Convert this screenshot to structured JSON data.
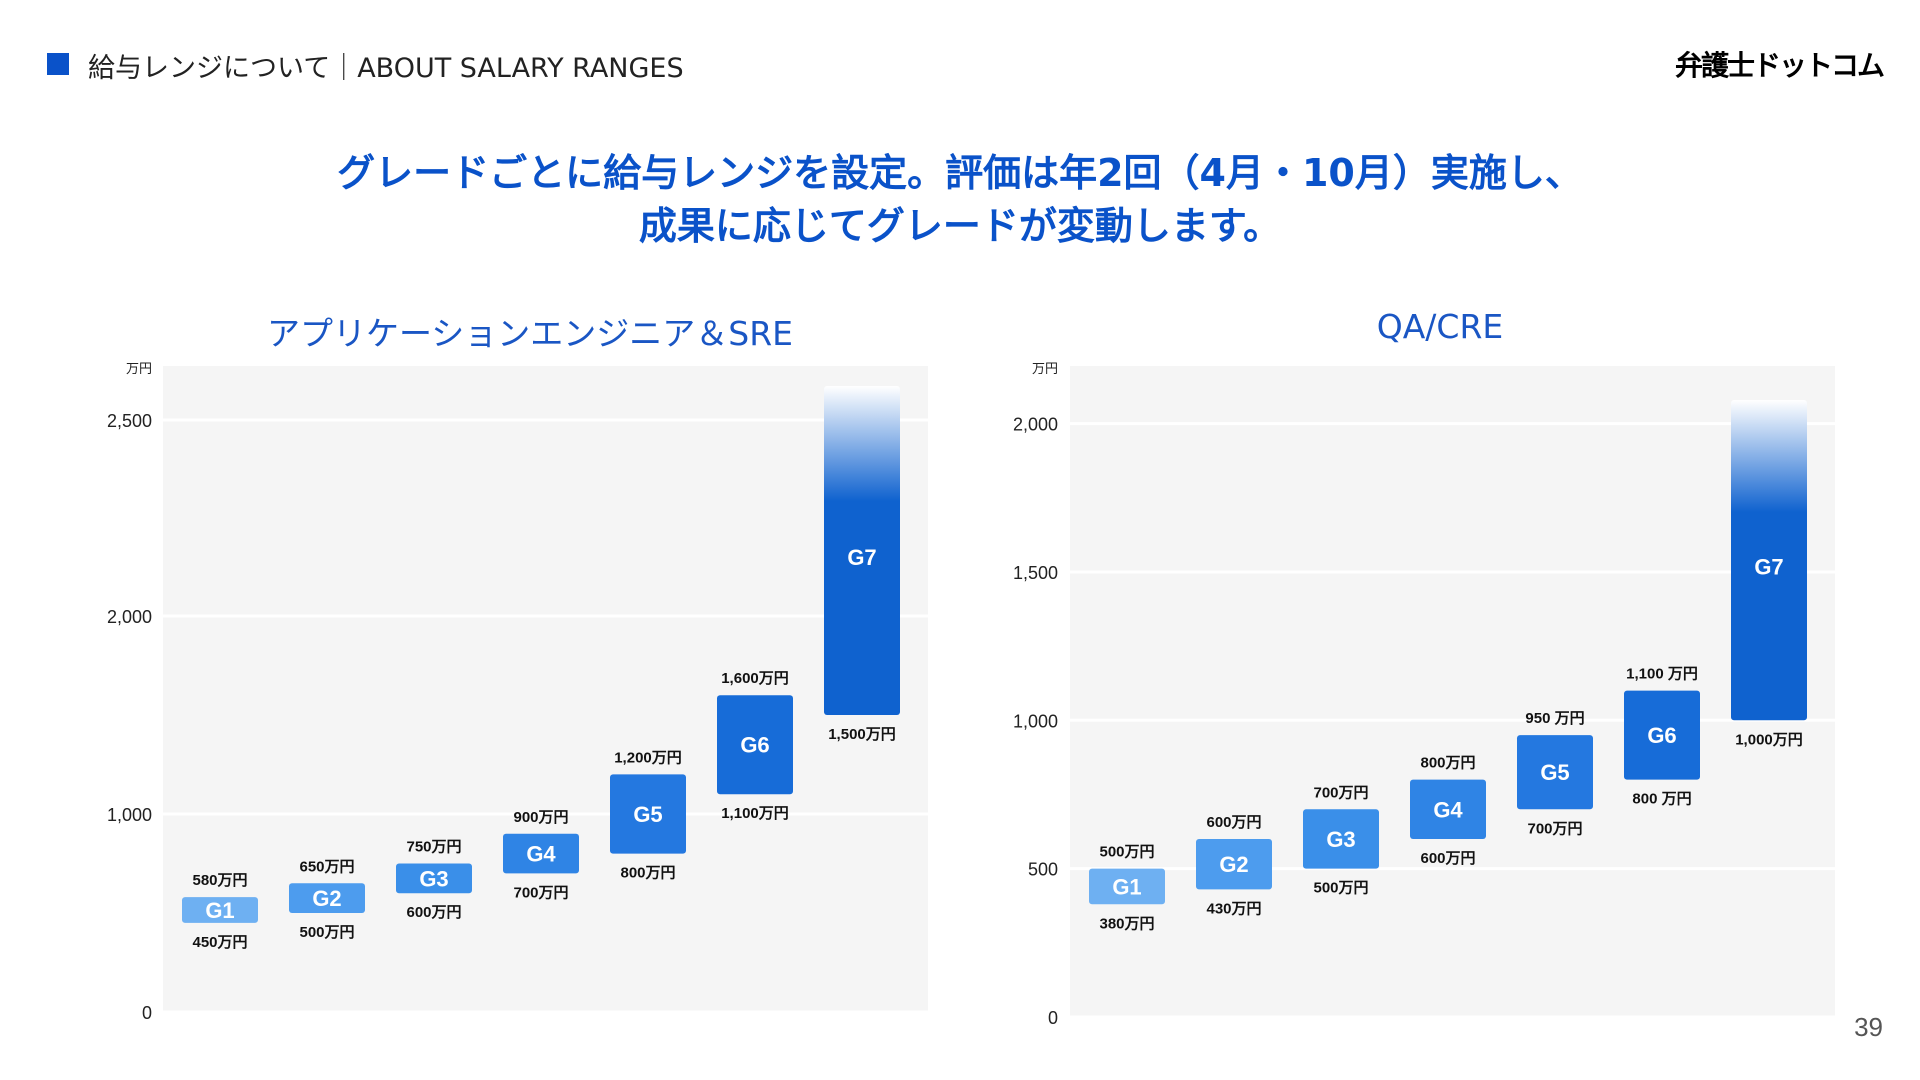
{
  "header": {
    "section_title": "給与レンジについて｜ABOUT SALARY RANGES",
    "logo": "弁護士ドットコム",
    "accent_color": "#0a52c9"
  },
  "headline": {
    "line1": "グレードごとに給与レンジを設定。評価は年2回（4月・10月）実施し、",
    "line2": "成果に応じてグレードが変動します。"
  },
  "page_number": "39",
  "chart_data": [
    {
      "type": "bar",
      "subtype": "floating-range",
      "title": "アプリケーションエンジニア＆SRE",
      "unit_label": "万円",
      "y_ticks": [
        0,
        1000,
        2000,
        2500
      ],
      "y_tick_labels": [
        "0",
        "1,000",
        "2,000",
        "2,500"
      ],
      "scale": "piecewise: 0–1,000 compressed, 1,000–2,000 expanded",
      "grid": true,
      "categories": [
        "G1",
        "G2",
        "G3",
        "G4",
        "G5",
        "G6",
        "G7"
      ],
      "ranges": [
        {
          "grade": "G1",
          "min": 450,
          "max": 580,
          "min_label": "450万円",
          "max_label": "580万円",
          "color": "#6eb0f2"
        },
        {
          "grade": "G2",
          "min": 500,
          "max": 650,
          "min_label": "500万円",
          "max_label": "650万円",
          "color": "#4d9cee"
        },
        {
          "grade": "G3",
          "min": 600,
          "max": 750,
          "min_label": "600万円",
          "max_label": "750万円",
          "color": "#3a8fe9"
        },
        {
          "grade": "G4",
          "min": 700,
          "max": 900,
          "min_label": "700万円",
          "max_label": "900万円",
          "color": "#2f84e5"
        },
        {
          "grade": "G5",
          "min": 800,
          "max": 1200,
          "min_label": "800万円",
          "max_label": "1,200万円",
          "color": "#2478e0"
        },
        {
          "grade": "G6",
          "min": 1100,
          "max": 1600,
          "min_label": "1,100万円",
          "max_label": "1,600万円",
          "color": "#176cd8"
        },
        {
          "grade": "G7",
          "min": 1500,
          "max": 2550,
          "min_label": "1,500万円",
          "max_label": "",
          "color": "#0f62cf",
          "open_ended": true
        }
      ]
    },
    {
      "type": "bar",
      "subtype": "floating-range",
      "title": "QA/CRE",
      "unit_label": "万円",
      "y_ticks": [
        0,
        500,
        1000,
        1500,
        2000
      ],
      "y_tick_labels": [
        "0",
        "500",
        "1,000",
        "1,500",
        "2,000"
      ],
      "scale": "linear",
      "grid": true,
      "categories": [
        "G1",
        "G2",
        "G3",
        "G4",
        "G5",
        "G6",
        "G7"
      ],
      "ranges": [
        {
          "grade": "G1",
          "min": 380,
          "max": 500,
          "min_label": "380万円",
          "max_label": "500万円",
          "color": "#6eb0f2"
        },
        {
          "grade": "G2",
          "min": 430,
          "max": 600,
          "min_label": "430万円",
          "max_label": "600万円",
          "color": "#4d9cee"
        },
        {
          "grade": "G3",
          "min": 500,
          "max": 700,
          "min_label": "500万円",
          "max_label": "700万円",
          "color": "#3a8fe9"
        },
        {
          "grade": "G4",
          "min": 600,
          "max": 800,
          "min_label": "600万円",
          "max_label": "800万円",
          "color": "#2f84e5"
        },
        {
          "grade": "G5",
          "min": 700,
          "max": 950,
          "min_label": "700万円",
          "max_label": "950 万円",
          "color": "#2478e0"
        },
        {
          "grade": "G6",
          "min": 800,
          "max": 1100,
          "min_label": "800 万円",
          "max_label": "1,100 万円",
          "color": "#176cd8"
        },
        {
          "grade": "G7",
          "min": 1000,
          "max": 2050,
          "min_label": "1,000万円",
          "max_label": "",
          "color": "#0f62cf",
          "open_ended": true
        }
      ]
    }
  ]
}
